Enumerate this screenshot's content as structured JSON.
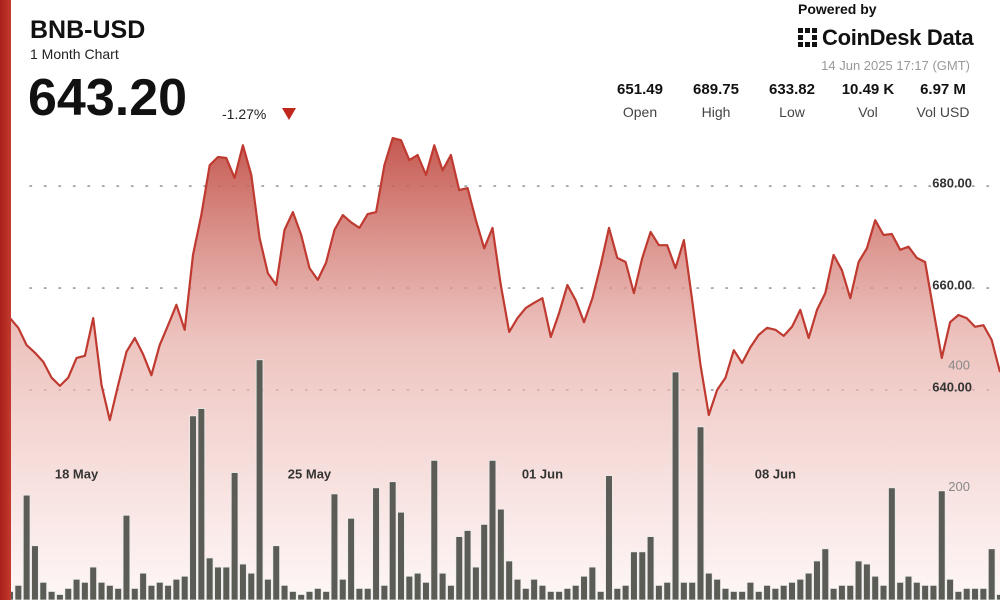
{
  "header": {
    "symbol": "BNB-USD",
    "subtitle": "1 Month Chart",
    "price": "643.20",
    "change": "-1.27%",
    "powered_by": "Powered by",
    "brand": "CoinDesk Data",
    "timestamp": "14 Jun 2025 17:17 (GMT)",
    "stats": [
      {
        "value": "651.49",
        "label": "Open"
      },
      {
        "value": "689.75",
        "label": "High"
      },
      {
        "value": "633.82",
        "label": "Low"
      },
      {
        "value": "10.49 K",
        "label": "Vol"
      },
      {
        "value": "6.97 M",
        "label": "Vol USD"
      }
    ]
  },
  "chart_data": {
    "type": "area",
    "categories": [
      null,
      null,
      null,
      null,
      null,
      null,
      null,
      null,
      "18 May",
      null,
      null,
      null,
      null,
      null,
      null,
      null,
      null,
      null,
      null,
      null,
      null,
      null,
      null,
      null,
      null,
      null,
      null,
      null,
      null,
      null,
      null,
      null,
      null,
      null,
      null,
      null,
      "25 May",
      null,
      null,
      null,
      null,
      null,
      null,
      null,
      null,
      null,
      null,
      null,
      null,
      null,
      null,
      null,
      null,
      null,
      null,
      null,
      null,
      null,
      null,
      null,
      null,
      null,
      null,
      null,
      "01 Jun",
      null,
      null,
      null,
      null,
      null,
      null,
      null,
      null,
      null,
      null,
      null,
      null,
      null,
      null,
      null,
      null,
      null,
      null,
      null,
      null,
      null,
      null,
      null,
      null,
      null,
      null,
      null,
      "08 Jun",
      null,
      null,
      null,
      null,
      null,
      null,
      null,
      null,
      null,
      null,
      null,
      null,
      null,
      null,
      null,
      null,
      null,
      null,
      null,
      null,
      null,
      null,
      null,
      null,
      null,
      null,
      null
    ],
    "series": [
      {
        "type": "area",
        "color": "#bf3a30",
        "values": [
          654.1,
          652.2,
          648.8,
          647.3,
          645.5,
          642.4,
          640.8,
          642.4,
          646.3,
          646.7,
          654.1,
          641.0,
          634.1,
          641.0,
          647.5,
          650.2,
          647.0,
          642.9,
          648.8,
          652.7,
          656.7,
          651.8,
          666.5,
          674.3,
          684.1,
          685.7,
          685.5,
          681.6,
          688.0,
          682.2,
          669.8,
          662.9,
          660.6,
          671.4,
          674.9,
          670.4,
          663.9,
          661.6,
          665.0,
          671.4,
          674.3,
          672.9,
          671.8,
          674.5,
          674.9,
          684.1,
          689.4,
          689.0,
          685.1,
          686.1,
          682.2,
          688.0,
          683.1,
          686.1,
          679.2,
          679.6,
          673.3,
          667.8,
          671.8,
          660.6,
          651.4,
          654.1,
          656.1,
          657.1,
          658.0,
          650.4,
          655.1,
          660.6,
          657.6,
          653.3,
          658.0,
          664.5,
          671.8,
          665.9,
          665.1,
          659.0,
          665.9,
          671.0,
          668.4,
          668.4,
          663.9,
          669.4,
          657.6,
          644.9,
          635.1,
          640.0,
          642.4,
          647.8,
          645.3,
          648.4,
          650.8,
          652.2,
          651.8,
          650.6,
          652.4,
          655.7,
          650.2,
          655.7,
          659.0,
          666.5,
          663.5,
          658.0,
          665.1,
          667.8,
          673.3,
          670.4,
          670.6,
          667.5,
          668.1,
          665.9,
          665.1,
          655.7,
          646.3,
          653.3,
          654.7,
          654.1,
          652.4,
          652.7,
          649.8,
          643.5
        ]
      },
      {
        "type": "bar",
        "axis": "y2",
        "color": "#5b5c55",
        "values": [
          30,
          40,
          188,
          105,
          45,
          30,
          25,
          35,
          50,
          45,
          70,
          45,
          40,
          35,
          155,
          35,
          60,
          40,
          45,
          40,
          50,
          55,
          318,
          330,
          85,
          70,
          70,
          225,
          75,
          60,
          410,
          50,
          105,
          40,
          30,
          25,
          30,
          35,
          30,
          190,
          50,
          150,
          35,
          35,
          200,
          40,
          210,
          160,
          55,
          60,
          45,
          245,
          60,
          40,
          120,
          130,
          70,
          140,
          245,
          165,
          80,
          50,
          35,
          50,
          40,
          30,
          30,
          35,
          40,
          55,
          70,
          30,
          220,
          35,
          40,
          95,
          95,
          120,
          40,
          45,
          390,
          45,
          45,
          300,
          60,
          50,
          35,
          30,
          30,
          45,
          30,
          40,
          35,
          40,
          45,
          50,
          60,
          80,
          100,
          35,
          40,
          40,
          80,
          75,
          55,
          40,
          200,
          45,
          55,
          45,
          40,
          40,
          195,
          50,
          30,
          35,
          35,
          35,
          100,
          25
        ]
      }
    ],
    "ylim": [
      598.8,
      716.5
    ],
    "yticks": [
      {
        "value": 640,
        "label": "640.00"
      },
      {
        "value": 660,
        "label": "660.00"
      },
      {
        "value": 680,
        "label": "680.00"
      }
    ],
    "y2lim": [
      16,
      1000
    ],
    "y2ticks": [
      200,
      400
    ],
    "grid": true
  }
}
